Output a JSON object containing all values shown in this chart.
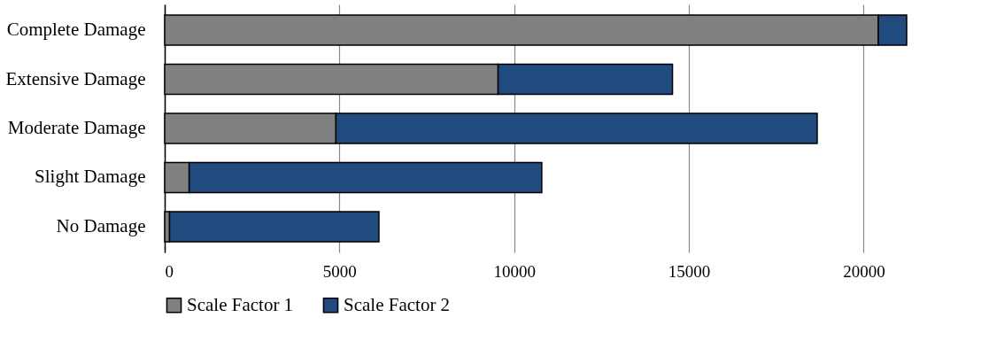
{
  "chart_data": {
    "type": "bar",
    "orientation": "horizontal",
    "stacked": true,
    "categories": [
      "Complete Damage",
      "Extensive Damage",
      "Moderate Damage",
      "Slight Damage",
      "No Damage"
    ],
    "series": [
      {
        "name": "Scale Factor 1",
        "color": "#808080",
        "values": [
          20420,
          9540,
          4900,
          700,
          140
        ]
      },
      {
        "name": "Scale Factor 2",
        "color": "#214a7e",
        "values": [
          810,
          4990,
          13770,
          10090,
          5990
        ]
      }
    ],
    "xlim": [
      0,
      21230
    ],
    "xticks": [
      0,
      5000,
      10000,
      15000,
      20000
    ],
    "grid": "x",
    "legend": "bottom"
  }
}
